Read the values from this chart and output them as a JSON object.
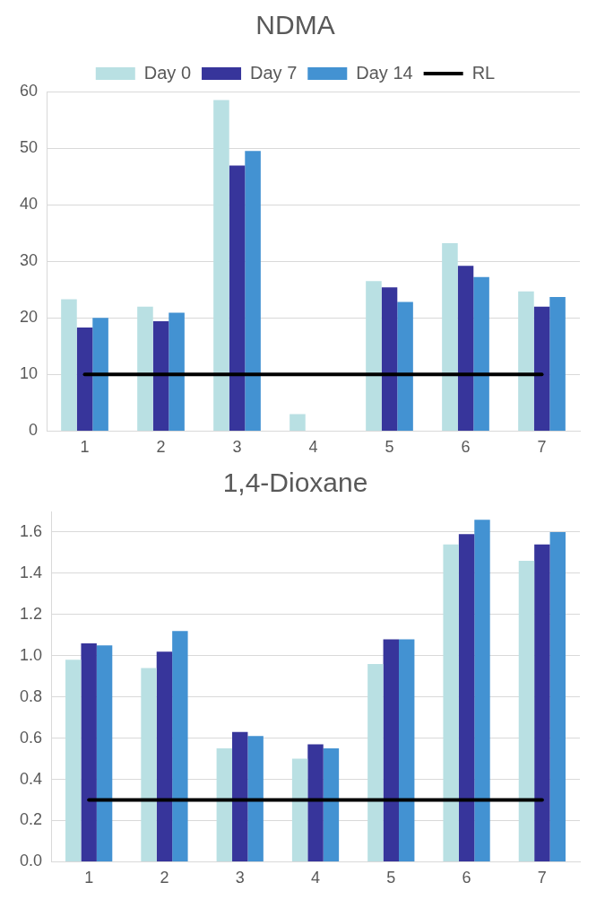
{
  "chart_data": [
    {
      "type": "bar",
      "title": "NDMA",
      "categories": [
        "1",
        "2",
        "3",
        "4",
        "5",
        "6",
        "7"
      ],
      "series": [
        {
          "name": "Day 0",
          "color": "#b9e0e3",
          "values": [
            23.3,
            22.0,
            58.5,
            3.0,
            26.5,
            33.2,
            24.7
          ]
        },
        {
          "name": "Day 7",
          "color": "#37359b",
          "values": [
            18.3,
            19.4,
            46.9,
            null,
            25.4,
            29.2,
            22.0
          ]
        },
        {
          "name": "Day 14",
          "color": "#4392d2",
          "values": [
            20.0,
            20.9,
            49.5,
            null,
            22.8,
            27.2,
            23.7
          ]
        },
        {
          "name": "RL",
          "type": "line",
          "color": "#000000",
          "values": [
            10,
            10,
            10,
            10,
            10,
            10,
            10
          ]
        }
      ],
      "ylim": [
        0,
        60
      ],
      "yticks": [
        0,
        10,
        20,
        30,
        40,
        50,
        60
      ],
      "grid": "y",
      "legend": "top",
      "marker": "none",
      "line_style": "solid"
    },
    {
      "type": "bar",
      "title": "1,4-Dioxane",
      "categories": [
        "1",
        "2",
        "3",
        "4",
        "5",
        "6",
        "7"
      ],
      "series": [
        {
          "color": "#b9e0e3",
          "values": [
            0.98,
            0.94,
            0.55,
            0.5,
            0.96,
            1.54,
            1.46
          ]
        },
        {
          "color": "#37359b",
          "values": [
            1.06,
            1.02,
            0.63,
            0.57,
            1.08,
            1.59,
            1.54
          ]
        },
        {
          "color": "#4392d2",
          "values": [
            1.05,
            1.12,
            0.61,
            0.55,
            1.08,
            1.66,
            1.6
          ]
        },
        {
          "type": "line",
          "color": "#000000",
          "values": [
            0.3,
            0.3,
            0.3,
            0.3,
            0.3,
            0.3,
            0.3
          ]
        }
      ],
      "ylim": [
        0,
        1.7
      ],
      "yticks": [
        {
          "value": 0,
          "label": "0.0"
        },
        {
          "value": 0.2,
          "label": "0.2"
        },
        {
          "value": 0.4,
          "label": "0.4"
        },
        {
          "value": 0.6,
          "label": "0.6"
        },
        {
          "value": 0.8,
          "label": "0.8"
        },
        {
          "value": 1.0,
          "label": "1.0"
        },
        {
          "value": 1.2,
          "label": "1.2"
        },
        {
          "value": 1.4,
          "label": "1.4"
        },
        {
          "value": 1.6,
          "label": "1.6"
        }
      ],
      "grid": "y",
      "legend": false,
      "marker": "none",
      "line_style": "solid"
    }
  ]
}
